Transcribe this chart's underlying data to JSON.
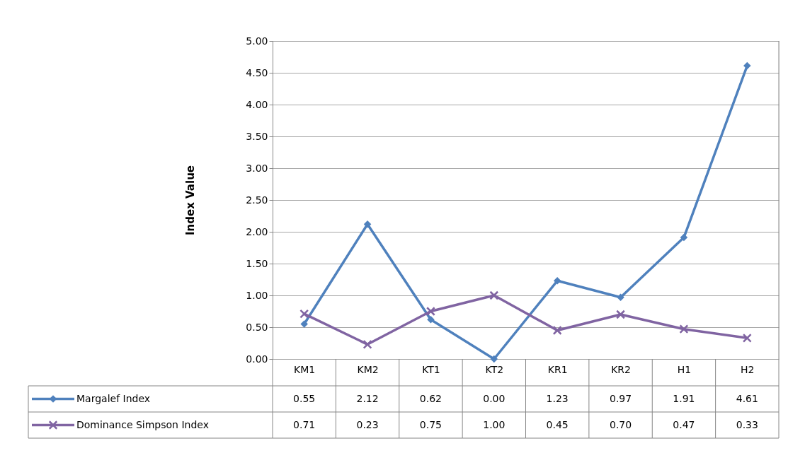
{
  "chart_data": {
    "type": "line",
    "ylabel": "Index Value",
    "categories": [
      "KM1",
      "KM2",
      "KT1",
      "KT2",
      "KR1",
      "KR2",
      "H1",
      "H2"
    ],
    "series": [
      {
        "name": "Margalef Index",
        "color": "#4f81bd",
        "marker": "diamond",
        "values": [
          0.55,
          2.12,
          0.62,
          0.0,
          1.23,
          0.97,
          1.91,
          4.61
        ],
        "value_labels": [
          "0.55",
          "2.12",
          "0.62",
          "0.00",
          "1.23",
          "0.97",
          "1.91",
          "4.61"
        ]
      },
      {
        "name": "Dominance Simpson Index",
        "color": "#8064a2",
        "marker": "cross",
        "values": [
          0.71,
          0.23,
          0.75,
          1.0,
          0.45,
          0.7,
          0.47,
          0.33
        ],
        "value_labels": [
          "0.71",
          "0.23",
          "0.75",
          "1.00",
          "0.45",
          "0.70",
          "0.47",
          "0.33"
        ]
      }
    ],
    "ylim": [
      0,
      5
    ],
    "yticks": [
      {
        "value": 0,
        "label": "0.00"
      },
      {
        "value": 0.5,
        "label": "0.50"
      },
      {
        "value": 1,
        "label": "1.00"
      },
      {
        "value": 1.5,
        "label": "1.50"
      },
      {
        "value": 2,
        "label": "2.00"
      },
      {
        "value": 2.5,
        "label": "2.50"
      },
      {
        "value": 3,
        "label": "3.00"
      },
      {
        "value": 3.5,
        "label": "3.50"
      },
      {
        "value": 4,
        "label": "4.00"
      },
      {
        "value": 4.5,
        "label": "4.50"
      },
      {
        "value": 5,
        "label": "5.00"
      }
    ],
    "grid": "y",
    "legend": "bottom",
    "line_style": "solid"
  }
}
